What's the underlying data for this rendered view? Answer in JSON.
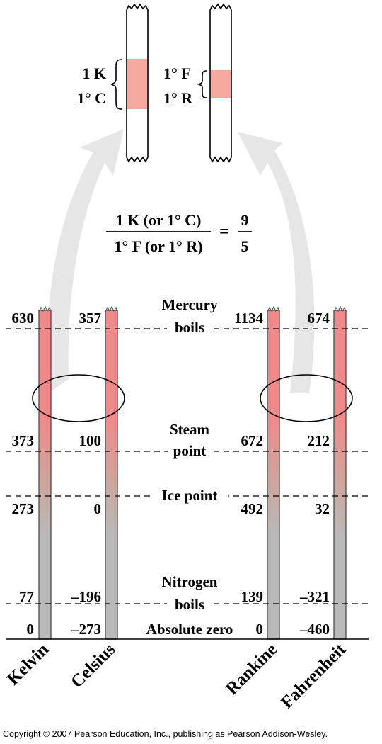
{
  "inset": {
    "left_labels": [
      "1 K",
      "1° C"
    ],
    "right_labels": [
      "1° F",
      "1° R"
    ]
  },
  "ratio": {
    "numerator": "1 K (or 1° C)",
    "denominator": "1° F (or 1° R)",
    "equals": "=",
    "value_numerator": "9",
    "value_denominator": "5"
  },
  "reference_points": [
    {
      "name_lines": [
        "Mercury",
        "boils"
      ],
      "kelvin": "630",
      "celsius": "357",
      "rankine": "1134",
      "fahrenheit": "674"
    },
    {
      "name_lines": [
        "Steam",
        "point"
      ],
      "kelvin": "373",
      "celsius": "100",
      "rankine": "672",
      "fahrenheit": "212"
    },
    {
      "name_lines": [
        "Ice point"
      ],
      "kelvin": "273",
      "celsius": "0",
      "rankine": "492",
      "fahrenheit": "32"
    },
    {
      "name_lines": [
        "Nitrogen",
        "boils"
      ],
      "kelvin": "77",
      "celsius": "–196",
      "rankine": "139",
      "fahrenheit": "–321"
    },
    {
      "name_lines": [
        "Absolute zero"
      ],
      "kelvin": "0",
      "celsius": "–273",
      "rankine": "0",
      "fahrenheit": "–460"
    }
  ],
  "scales": [
    "Kelvin",
    "Celsius",
    "Rankine",
    "Fahrenheit"
  ],
  "colors": {
    "hot": "#f08a8a",
    "cold": "#b9b9b9",
    "inset_band": "#f7a9a0",
    "arrow": "#e6e6e6"
  },
  "copyright": "Copyright © 2007 Pearson Education, Inc., publishing as Pearson Addison-Wesley."
}
